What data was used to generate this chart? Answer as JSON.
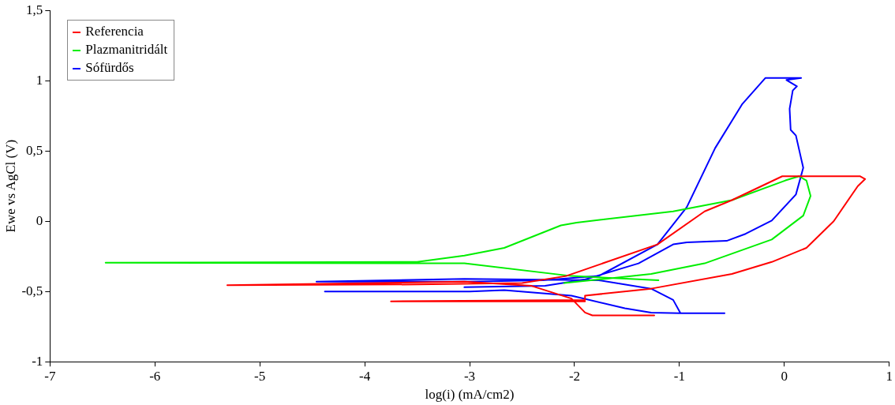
{
  "chart_data": {
    "type": "line",
    "xlabel": "log(i) (mA/cm2)",
    "ylabel": "Ewe vs AgCl (V)",
    "xlim": [
      -7,
      1
    ],
    "xticks": [
      -7,
      -6,
      -5,
      -4,
      -3,
      -2,
      -1,
      0,
      1
    ],
    "ylim": [
      -1,
      1.5
    ],
    "yticks": [
      {
        "value": -1,
        "label": "-1"
      },
      {
        "value": -0.5,
        "label": "-0,5"
      },
      {
        "value": 0,
        "label": "0"
      },
      {
        "value": 0.5,
        "label": "0,5"
      },
      {
        "value": 1,
        "label": "1"
      },
      {
        "value": 1.5,
        "label": "1,5"
      }
    ],
    "grid": false,
    "legend": "top left",
    "marker": "none",
    "line_style": "solid",
    "series": [
      {
        "name": "Referencia",
        "color": "#ff0000",
        "x": [
          -1.24,
          -1.83,
          -1.9,
          -2.03,
          -2.41,
          -3.05,
          -5.31,
          -3.5,
          -2.5,
          -2.08,
          -1.21,
          -0.76,
          -0.5,
          -0.02,
          0.72,
          0.77,
          0.7,
          0.47,
          0.21,
          -0.12,
          -0.5,
          -1.27,
          -1.9,
          -1.9,
          -3.75,
          -1.9
        ],
        "values": [
          -0.67,
          -0.67,
          -0.65,
          -0.55,
          -0.46,
          -0.43,
          -0.455,
          -0.45,
          -0.44,
          -0.39,
          -0.165,
          0.07,
          0.15,
          0.32,
          0.32,
          0.3,
          0.25,
          0,
          -0.19,
          -0.29,
          -0.375,
          -0.48,
          -0.53,
          -0.56,
          -0.57,
          -0.57
        ]
      },
      {
        "name": "Plazmanitridált",
        "color": "#00ee00",
        "x": [
          -1.2,
          -2.03,
          -3.05,
          -6.47,
          -3.5,
          -3.05,
          -2.67,
          -2.13,
          -1.98,
          -1.06,
          -0.5,
          0.01,
          0.14,
          0.21,
          0.25,
          0.18,
          -0.12,
          -0.76,
          -1.27,
          -1.77,
          -2.1
        ],
        "values": [
          -0.42,
          -0.39,
          -0.3,
          -0.295,
          -0.29,
          -0.245,
          -0.19,
          -0.03,
          -0.01,
          0.07,
          0.15,
          0.29,
          0.32,
          0.29,
          0.18,
          0.04,
          -0.13,
          -0.3,
          -0.375,
          -0.415,
          -0.44
        ]
      },
      {
        "name": "Sófürdős",
        "color": "#0000ff",
        "x": [
          -4.38,
          -3,
          -2.67,
          -2.03,
          -1.52,
          -1.27,
          -0.99,
          -0.57,
          -0.99,
          -1.06,
          -1.27,
          -1.77,
          -3.05,
          -4.46,
          -3,
          -2.3,
          -1.77,
          -1.21,
          -0.93,
          -0.66,
          -0.4,
          -0.18,
          0.16,
          0.02,
          0.12,
          0.08,
          0.05,
          0.06,
          0.11,
          0.18,
          0.11,
          -0.12,
          -0.37,
          -0.55,
          -0.93,
          -1.06,
          -1.39,
          -1.9,
          -2.28,
          -3.05
        ],
        "values": [
          -0.5,
          -0.5,
          -0.49,
          -0.53,
          -0.62,
          -0.65,
          -0.655,
          -0.655,
          -0.655,
          -0.56,
          -0.48,
          -0.42,
          -0.41,
          -0.43,
          -0.43,
          -0.42,
          -0.39,
          -0.165,
          0.1,
          0.52,
          0.835,
          1.02,
          1.02,
          1.005,
          0.96,
          0.93,
          0.8,
          0.65,
          0.61,
          0.38,
          0.19,
          0.005,
          -0.09,
          -0.14,
          -0.15,
          -0.165,
          -0.3,
          -0.415,
          -0.46,
          -0.47
        ]
      }
    ]
  }
}
